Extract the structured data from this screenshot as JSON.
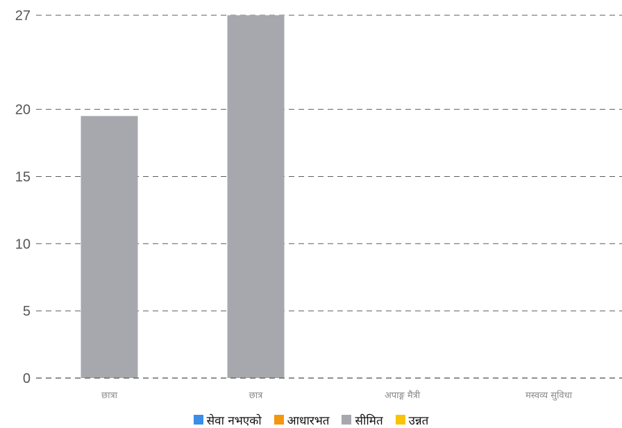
{
  "chart_data": {
    "type": "bar",
    "categories": [
      "छात्रा",
      "छात्र",
      "अपाङ्ग मैत्री",
      "मस्वव्य सुविधा"
    ],
    "series": [
      {
        "name": "सेवा नभएको",
        "color": "#3a8ee6",
        "values": [
          0,
          0,
          0,
          0
        ]
      },
      {
        "name": "आधारभत",
        "color": "#f5960f",
        "values": [
          0,
          0,
          0,
          0
        ]
      },
      {
        "name": "सीमित",
        "color": "#a6a8ae",
        "values": [
          19.5,
          27,
          0,
          0
        ]
      },
      {
        "name": "उन्नत",
        "color": "#f7c40a",
        "values": [
          0,
          0,
          0,
          0
        ]
      }
    ],
    "yticks": [
      0,
      5,
      10,
      15,
      20,
      27
    ],
    "ylim": [
      0,
      27
    ],
    "grid": true,
    "legend": "bottom",
    "title": "",
    "xlabel": "",
    "ylabel": ""
  }
}
